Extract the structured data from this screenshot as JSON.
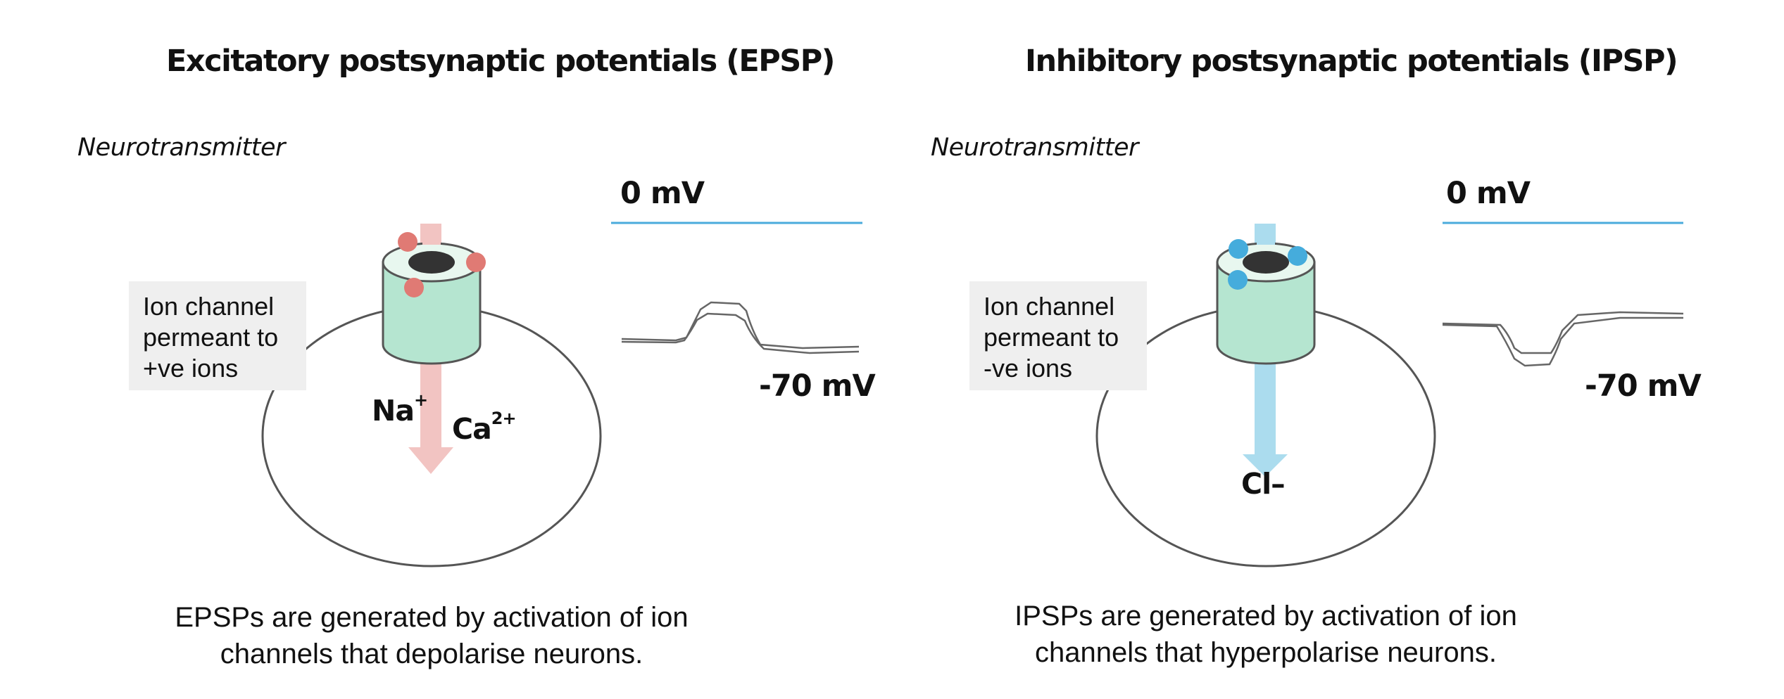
{
  "epsp": {
    "title": "Excitatory postsynaptic potentials (EPSP)",
    "neurotransmitter_label": "Neurotransmitter",
    "ion_channel_label": [
      "Ion channel",
      "permeant to",
      "+ve ions"
    ],
    "zero_mv": "0 mV",
    "resting_mv": "-70 mV",
    "ions": [
      {
        "symbol": "Na",
        "charge": "+"
      },
      {
        "symbol": "Ca",
        "charge": "2+"
      }
    ],
    "caption": [
      "EPSPs are generated by activation of ion",
      "channels that depolarise neurons."
    ],
    "colors": {
      "transmitter": "#e07a74",
      "flow_arrow": "#f2c4c2",
      "channel": "#b5e5d0"
    }
  },
  "ipsp": {
    "title": "Inhibitory postsynaptic potentials (IPSP)",
    "neurotransmitter_label": "Neurotransmitter",
    "ion_channel_label": [
      "Ion channel",
      "permeant to",
      "-ve ions"
    ],
    "zero_mv": "0 mV",
    "resting_mv": "-70 mV",
    "ions": [
      {
        "symbol": "Cl–",
        "charge": ""
      }
    ],
    "caption": [
      "IPSPs are generated by activation of ion",
      "channels that hyperpolarise neurons."
    ],
    "colors": {
      "transmitter": "#45acdc",
      "flow_arrow": "#abdcee",
      "channel": "#b5e5d0"
    }
  }
}
